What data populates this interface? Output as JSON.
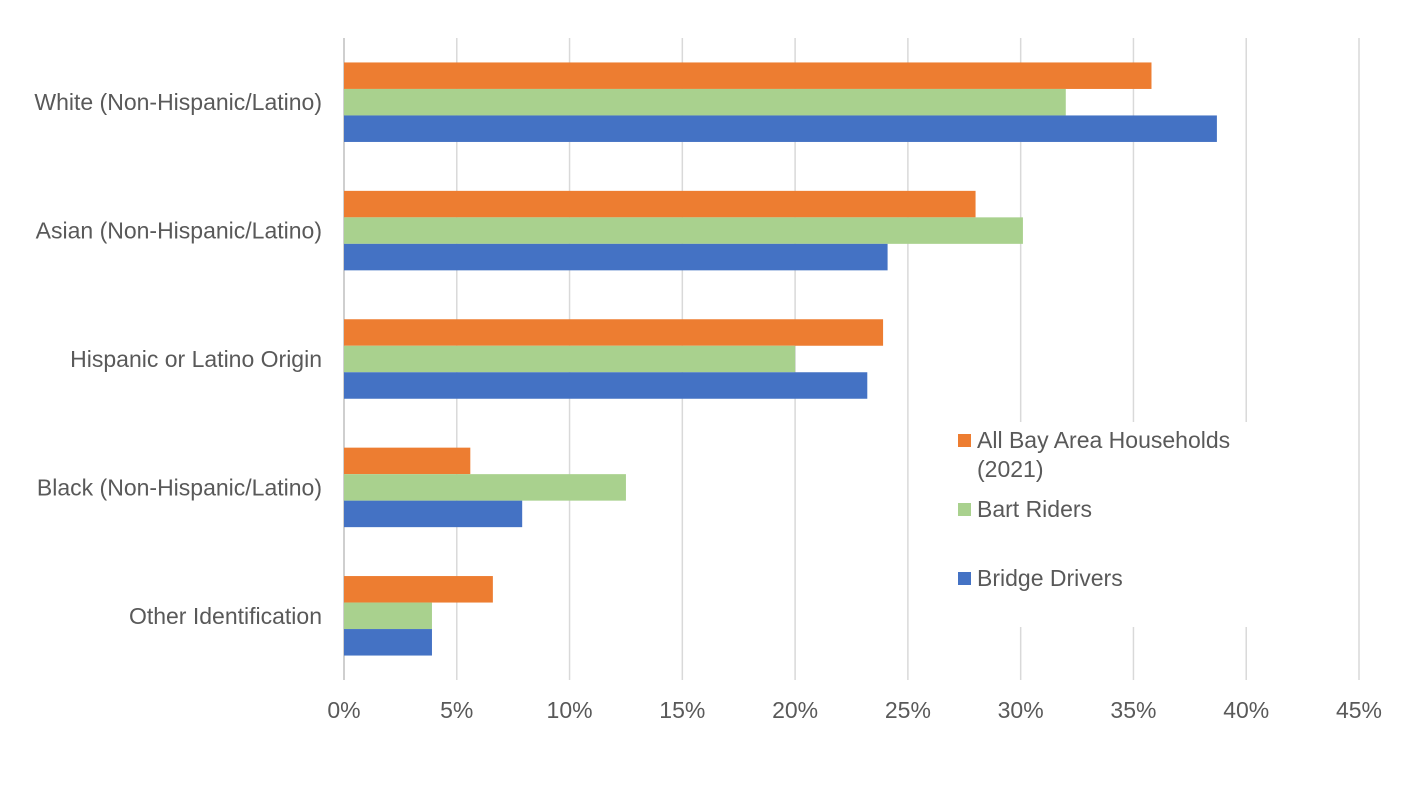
{
  "chart_data": {
    "type": "bar",
    "orientation": "horizontal",
    "title": "",
    "xlabel": "",
    "ylabel": "",
    "xlim": [
      0,
      45
    ],
    "x_ticks": [
      "0%",
      "5%",
      "10%",
      "15%",
      "20%",
      "25%",
      "30%",
      "35%",
      "40%",
      "45%"
    ],
    "grid": true,
    "legend_position": "right",
    "categories": [
      "White (Non-Hispanic/Latino)",
      "Asian (Non-Hispanic/Latino)",
      "Hispanic or Latino Origin",
      "Black (Non-Hispanic/Latino)",
      "Other Identification"
    ],
    "series": [
      {
        "name": "All Bay Area Households (2021)",
        "legend_lines": [
          "All Bay Area Households",
          "(2021)"
        ],
        "color": "#ED7D31",
        "values": [
          35.8,
          28.0,
          23.9,
          5.6,
          6.6
        ]
      },
      {
        "name": "Bart Riders",
        "legend_lines": [
          "Bart Riders"
        ],
        "color": "#A9D18E",
        "values": [
          32.0,
          30.1,
          20.0,
          12.5,
          3.9
        ]
      },
      {
        "name": "Bridge Drivers",
        "legend_lines": [
          "Bridge Drivers"
        ],
        "color": "#4472C4",
        "values": [
          38.7,
          24.1,
          23.2,
          7.9,
          3.9
        ]
      }
    ]
  }
}
